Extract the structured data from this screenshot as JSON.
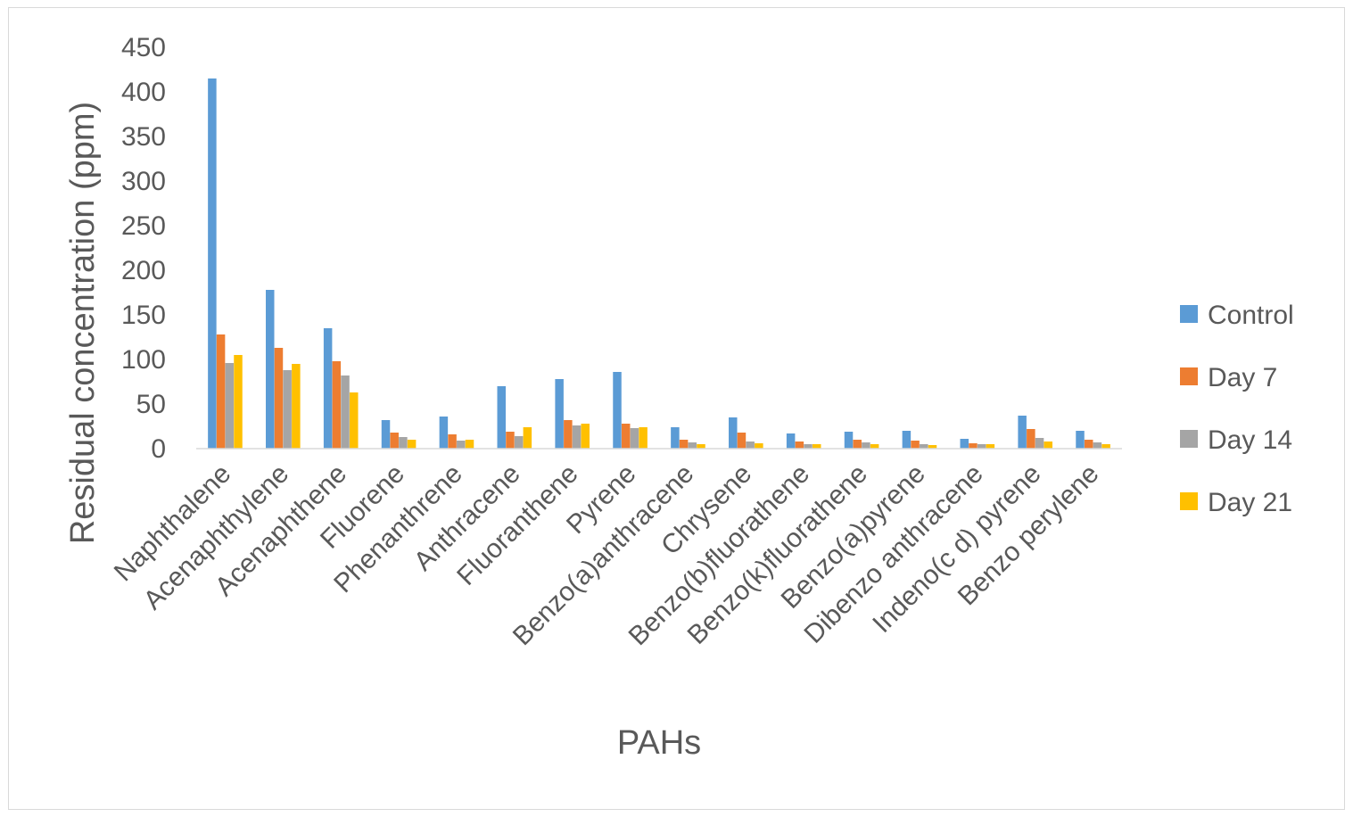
{
  "chart_data": {
    "type": "bar",
    "title": "",
    "xlabel": "PAHs",
    "ylabel": "Residual concentration (ppm)",
    "ylim": [
      0,
      450
    ],
    "yticks": [
      0,
      50,
      100,
      150,
      200,
      250,
      300,
      350,
      400,
      450
    ],
    "grid": false,
    "legend_position": "right",
    "categories": [
      "Naphthalene",
      "Acenaphthylene",
      "Acenaphthene",
      "Fluorene",
      "Phenanthrene",
      "Anthracene",
      "Fluoranthene",
      "Pyrene",
      "Benzo(a)anthracene",
      "Chrysene",
      "Benzo(b)fluorathene",
      "Benzo(k)fluorathene",
      "Benzo(a)pyrene",
      "Dibenzo anthracene",
      "Indeno(c d) pyrene",
      "Benzo perylene"
    ],
    "series": [
      {
        "name": "Control",
        "color": "#5B9BD5",
        "values": [
          415,
          178,
          135,
          32,
          36,
          70,
          78,
          86,
          24,
          35,
          17,
          19,
          20,
          11,
          37,
          20
        ]
      },
      {
        "name": "Day 7",
        "color": "#ED7D31",
        "values": [
          128,
          113,
          98,
          18,
          16,
          19,
          32,
          28,
          10,
          18,
          8,
          10,
          9,
          6,
          22,
          10
        ]
      },
      {
        "name": "Day 14",
        "color": "#A5A5A5",
        "values": [
          96,
          88,
          82,
          13,
          9,
          14,
          26,
          23,
          7,
          8,
          5,
          7,
          5,
          5,
          12,
          7
        ]
      },
      {
        "name": "Day 21",
        "color": "#FFC000",
        "values": [
          105,
          95,
          63,
          10,
          10,
          24,
          28,
          24,
          5,
          6,
          5,
          5,
          4,
          5,
          8,
          5
        ]
      }
    ]
  }
}
